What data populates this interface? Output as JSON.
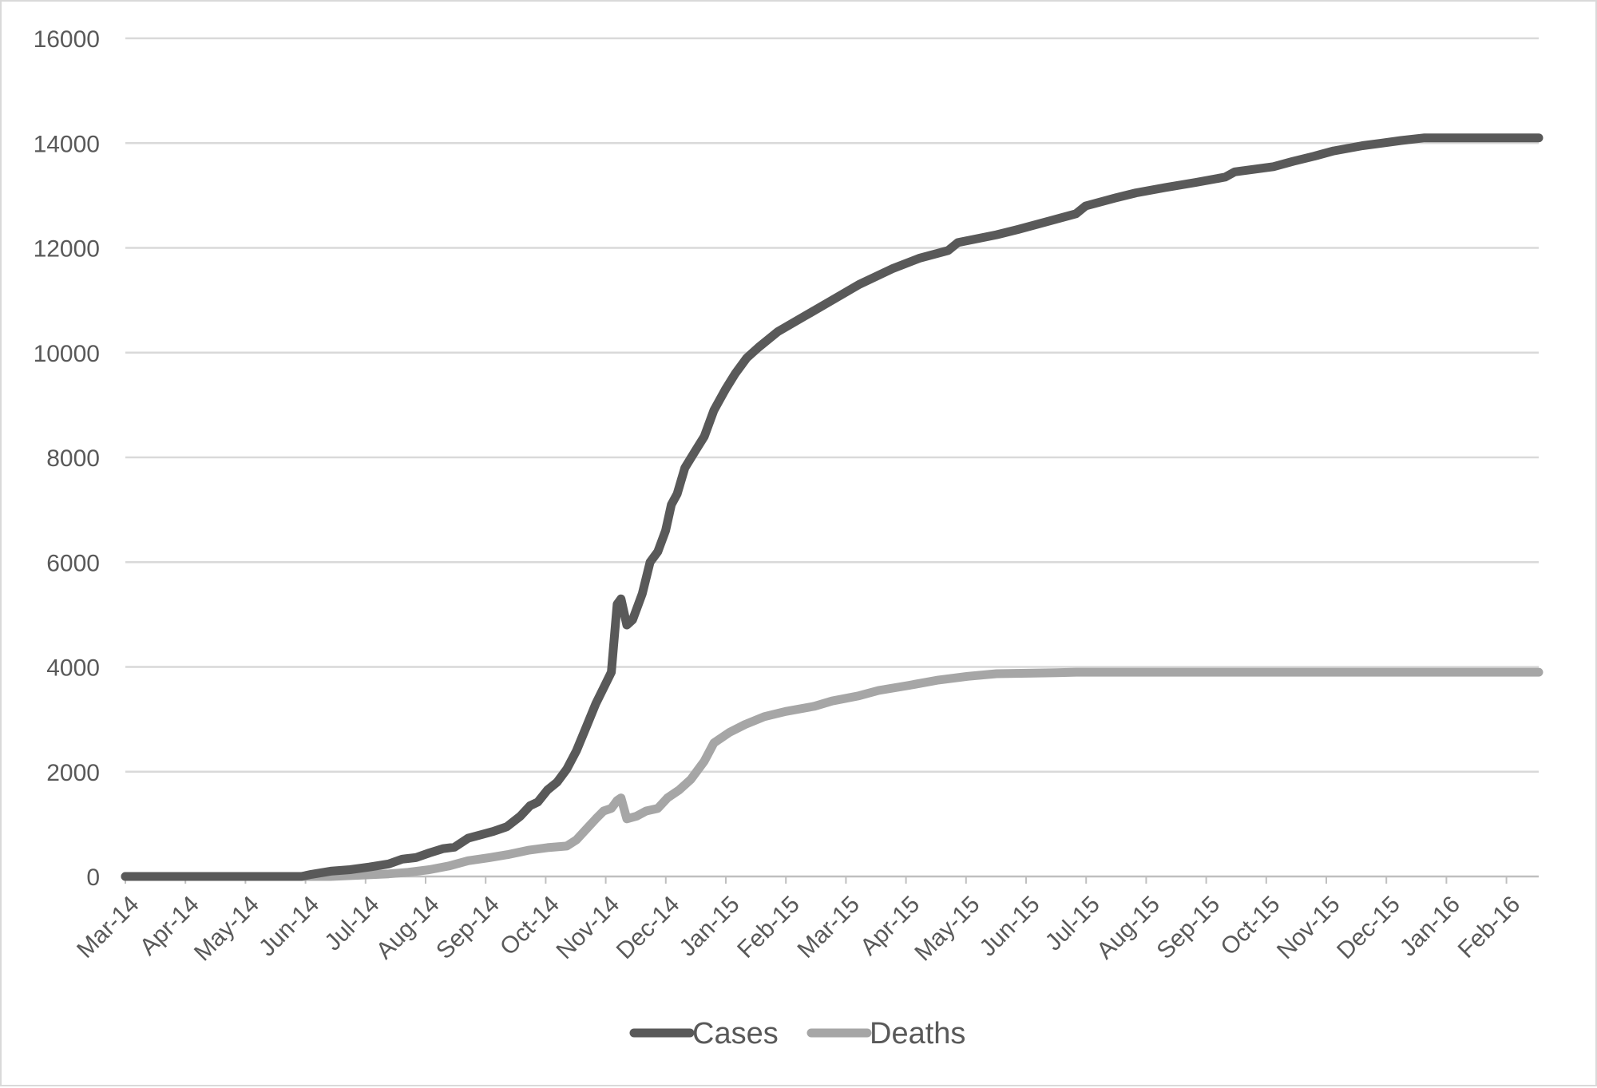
{
  "chart_data": {
    "type": "line",
    "title": "",
    "xlabel": "",
    "ylabel": "",
    "ylim": [
      0,
      16000
    ],
    "yticks": [
      0,
      2000,
      4000,
      6000,
      8000,
      10000,
      12000,
      14000,
      16000
    ],
    "xlim": [
      "2014-03-01",
      "2016-02-29"
    ],
    "categories": [
      "Mar-14",
      "Apr-14",
      "May-14",
      "Jun-14",
      "Jul-14",
      "Aug-14",
      "Sep-14",
      "Oct-14",
      "Nov-14",
      "Dec-14",
      "Jan-15",
      "Feb-15",
      "Mar-15",
      "Apr-15",
      "May-15",
      "Jun-15",
      "Jul-15",
      "Aug-15",
      "Sep-15",
      "Oct-15",
      "Nov-15",
      "Dec-15",
      "Jan-16",
      "Feb-16"
    ],
    "grid": true,
    "legend_position": "bottom",
    "colors": {
      "Cases": "#595959",
      "Deaths": "#a6a6a6",
      "grid": "#d9d9d9",
      "axis": "#bfbfbf"
    },
    "series": [
      {
        "name": "Cases",
        "points": [
          [
            "2014-03-01",
            0
          ],
          [
            "2014-05-31",
            0
          ],
          [
            "2014-06-05",
            40
          ],
          [
            "2014-06-15",
            100
          ],
          [
            "2014-06-25",
            130
          ],
          [
            "2014-07-05",
            180
          ],
          [
            "2014-07-15",
            240
          ],
          [
            "2014-07-22",
            330
          ],
          [
            "2014-07-29",
            360
          ],
          [
            "2014-08-05",
            450
          ],
          [
            "2014-08-12",
            530
          ],
          [
            "2014-08-18",
            560
          ],
          [
            "2014-08-25",
            730
          ],
          [
            "2014-08-31",
            790
          ],
          [
            "2014-09-07",
            860
          ],
          [
            "2014-09-14",
            950
          ],
          [
            "2014-09-21",
            1150
          ],
          [
            "2014-09-26",
            1350
          ],
          [
            "2014-09-30",
            1420
          ],
          [
            "2014-10-05",
            1650
          ],
          [
            "2014-10-10",
            1800
          ],
          [
            "2014-10-15",
            2050
          ],
          [
            "2014-10-20",
            2400
          ],
          [
            "2014-10-25",
            2850
          ],
          [
            "2014-10-30",
            3300
          ],
          [
            "2014-11-03",
            3600
          ],
          [
            "2014-11-07",
            3900
          ],
          [
            "2014-11-10",
            5200
          ],
          [
            "2014-11-12",
            5300
          ],
          [
            "2014-11-15",
            4800
          ],
          [
            "2014-11-18",
            4900
          ],
          [
            "2014-11-23",
            5400
          ],
          [
            "2014-11-27",
            6000
          ],
          [
            "2014-12-01",
            6200
          ],
          [
            "2014-12-05",
            6600
          ],
          [
            "2014-12-08",
            7100
          ],
          [
            "2014-12-11",
            7300
          ],
          [
            "2014-12-15",
            7800
          ],
          [
            "2014-12-20",
            8100
          ],
          [
            "2014-12-25",
            8400
          ],
          [
            "2014-12-30",
            8900
          ],
          [
            "2015-01-05",
            9300
          ],
          [
            "2015-01-10",
            9600
          ],
          [
            "2015-01-16",
            9900
          ],
          [
            "2015-01-22",
            10100
          ],
          [
            "2015-02-01",
            10400
          ],
          [
            "2015-02-15",
            10700
          ],
          [
            "2015-03-01",
            11000
          ],
          [
            "2015-03-15",
            11300
          ],
          [
            "2015-04-01",
            11600
          ],
          [
            "2015-04-15",
            11800
          ],
          [
            "2015-04-30",
            11950
          ],
          [
            "2015-05-05",
            12100
          ],
          [
            "2015-05-25",
            12250
          ],
          [
            "2015-06-05",
            12350
          ],
          [
            "2015-06-20",
            12500
          ],
          [
            "2015-07-05",
            12650
          ],
          [
            "2015-07-10",
            12800
          ],
          [
            "2015-07-25",
            12950
          ],
          [
            "2015-08-05",
            13050
          ],
          [
            "2015-08-20",
            13150
          ],
          [
            "2015-09-05",
            13250
          ],
          [
            "2015-09-20",
            13350
          ],
          [
            "2015-09-25",
            13450
          ],
          [
            "2015-10-05",
            13500
          ],
          [
            "2015-10-15",
            13550
          ],
          [
            "2015-10-25",
            13650
          ],
          [
            "2015-11-05",
            13750
          ],
          [
            "2015-11-15",
            13850
          ],
          [
            "2015-11-30",
            13950
          ],
          [
            "2015-12-10",
            14000
          ],
          [
            "2015-12-20",
            14050
          ],
          [
            "2016-01-01",
            14100
          ],
          [
            "2016-02-29",
            14100
          ]
        ]
      },
      {
        "name": "Deaths",
        "points": [
          [
            "2014-03-01",
            0
          ],
          [
            "2014-06-15",
            0
          ],
          [
            "2014-07-15",
            50
          ],
          [
            "2014-07-25",
            80
          ],
          [
            "2014-08-05",
            130
          ],
          [
            "2014-08-15",
            200
          ],
          [
            "2014-08-25",
            300
          ],
          [
            "2014-09-05",
            360
          ],
          [
            "2014-09-15",
            420
          ],
          [
            "2014-09-25",
            500
          ],
          [
            "2014-10-05",
            550
          ],
          [
            "2014-10-15",
            580
          ],
          [
            "2014-10-20",
            700
          ],
          [
            "2014-10-25",
            900
          ],
          [
            "2014-10-30",
            1100
          ],
          [
            "2014-11-03",
            1250
          ],
          [
            "2014-11-07",
            1300
          ],
          [
            "2014-11-10",
            1450
          ],
          [
            "2014-11-12",
            1500
          ],
          [
            "2014-11-15",
            1100
          ],
          [
            "2014-11-20",
            1150
          ],
          [
            "2014-11-25",
            1250
          ],
          [
            "2014-12-01",
            1300
          ],
          [
            "2014-12-06",
            1500
          ],
          [
            "2014-12-12",
            1650
          ],
          [
            "2014-12-18",
            1850
          ],
          [
            "2014-12-25",
            2200
          ],
          [
            "2014-12-30",
            2550
          ],
          [
            "2015-01-07",
            2750
          ],
          [
            "2015-01-15",
            2900
          ],
          [
            "2015-01-25",
            3050
          ],
          [
            "2015-02-05",
            3150
          ],
          [
            "2015-02-20",
            3250
          ],
          [
            "2015-03-01",
            3350
          ],
          [
            "2015-03-15",
            3450
          ],
          [
            "2015-03-25",
            3550
          ],
          [
            "2015-04-10",
            3650
          ],
          [
            "2015-04-25",
            3750
          ],
          [
            "2015-05-10",
            3820
          ],
          [
            "2015-05-25",
            3870
          ],
          [
            "2015-06-10",
            3880
          ],
          [
            "2015-06-25",
            3890
          ],
          [
            "2015-07-05",
            3900
          ],
          [
            "2016-02-29",
            3900
          ]
        ]
      }
    ]
  }
}
